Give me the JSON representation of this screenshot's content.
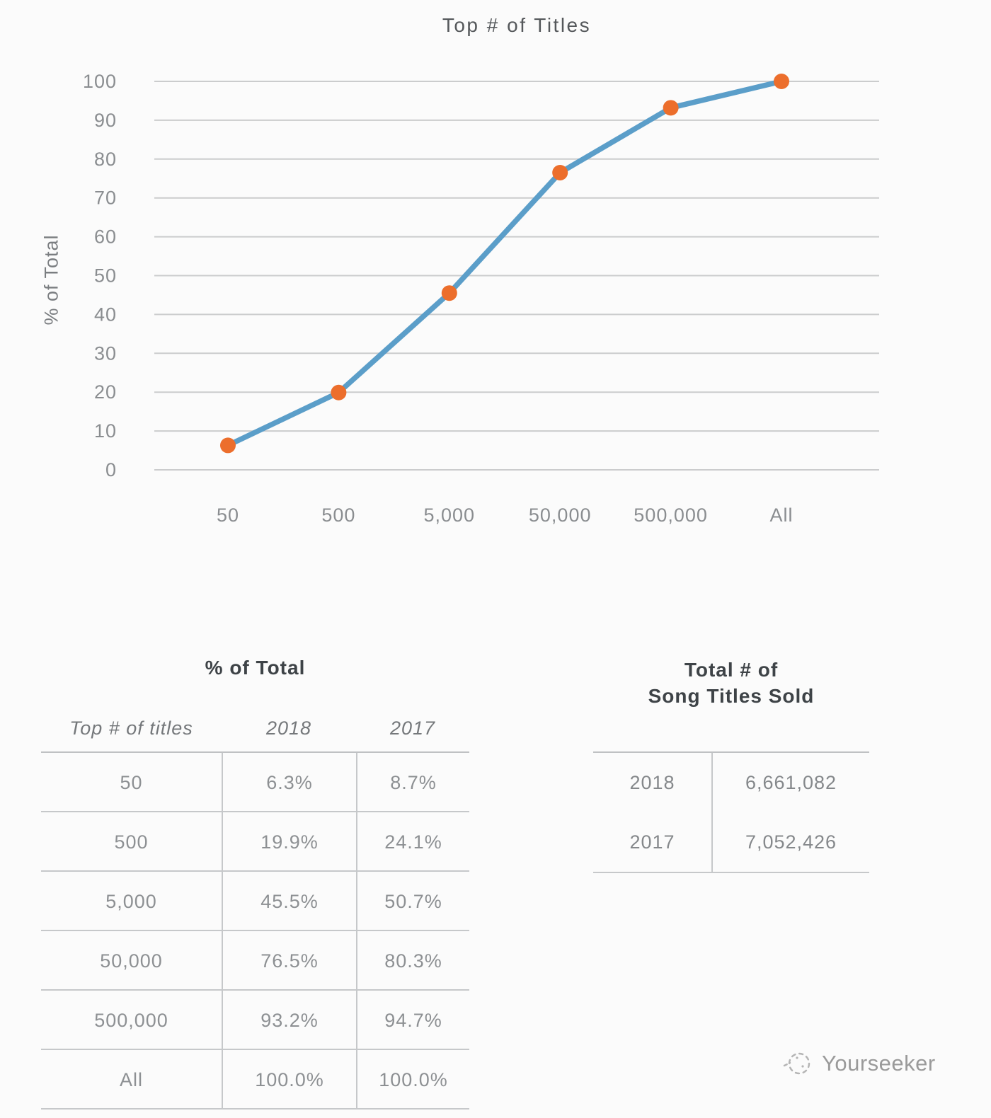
{
  "chart": {
    "title": "Top # of Titles",
    "y_axis_label": "% of Total",
    "categories": [
      "50",
      "500",
      "5,000",
      "50,000",
      "500,000",
      "All"
    ],
    "values": [
      6.3,
      19.9,
      45.5,
      76.5,
      93.2,
      100.0
    ],
    "y_ticks": [
      0,
      10,
      20,
      30,
      40,
      50,
      60,
      70,
      80,
      90,
      100
    ],
    "line_color": "#5b9ec9",
    "marker_color": "#ec6e2c",
    "grid_color": "#cbcccd",
    "tick_label_color": "#8a8d90"
  },
  "chart_data": {
    "type": "line",
    "title": "Top # of Titles",
    "xlabel": "",
    "ylabel": "% of Total",
    "categories": [
      "50",
      "500",
      "5,000",
      "50,000",
      "500,000",
      "All"
    ],
    "series": [
      {
        "name": "2018",
        "values": [
          6.3,
          19.9,
          45.5,
          76.5,
          93.2,
          100.0
        ]
      }
    ],
    "ylim": [
      0,
      100
    ],
    "grid": "horizontal",
    "legend": "none"
  },
  "tables": {
    "pct_of_total": {
      "title": "% of Total",
      "columns": [
        "Top # of titles",
        "2018",
        "2017"
      ],
      "rows": [
        [
          "50",
          "6.3%",
          "8.7%"
        ],
        [
          "500",
          "19.9%",
          "24.1%"
        ],
        [
          "5,000",
          "45.5%",
          "50.7%"
        ],
        [
          "50,000",
          "76.5%",
          "80.3%"
        ],
        [
          "500,000",
          "93.2%",
          "94.7%"
        ],
        [
          "All",
          "100.0%",
          "100.0%"
        ]
      ]
    },
    "titles_sold": {
      "title_line1": "Total # of",
      "title_line2": "Song Titles Sold",
      "rows": [
        [
          "2018",
          "6,661,082"
        ],
        [
          "2017",
          "7,052,426"
        ]
      ]
    }
  },
  "watermark": {
    "label": "Yourseeker"
  }
}
